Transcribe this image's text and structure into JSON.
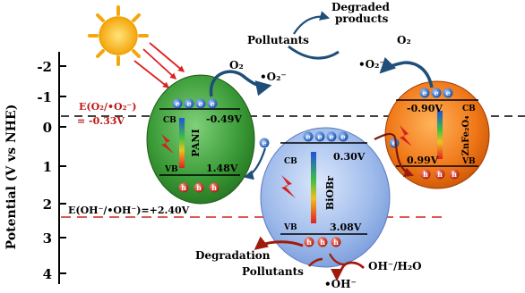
{
  "axis": {
    "title": "Potential (V vs NHE)",
    "ticks": [
      "-2",
      "-1",
      "0",
      "1",
      "2",
      "3",
      "4"
    ]
  },
  "references": {
    "o2_label_line1": "E(O₂/•O₂⁻)",
    "o2_label_line2": "= -0.33V",
    "oh_label": "E(OH⁻/•OH⁻)=+2.40V"
  },
  "pani": {
    "name": "PANI",
    "cb_label": "CB",
    "cb_value": "-0.49V",
    "vb_label": "VB",
    "vb_value": "1.48V",
    "electron": "e",
    "hole": "h"
  },
  "biobr": {
    "name": "BiOBr",
    "cb_label": "CB",
    "cb_value": "0.30V",
    "vb_label": "VB",
    "vb_value": "3.08V"
  },
  "znfe": {
    "name": "ZnFe₂O₄",
    "cb_label": "CB",
    "cb_value": "-0.90V",
    "vb_label": "VB",
    "vb_value": "0.99V"
  },
  "species": {
    "o2_left": "O₂",
    "superoxide_left": "•O₂⁻",
    "pollutants_top": "Pollutants",
    "degraded_line1": "Degraded",
    "degraded_line2": "products",
    "superoxide_right": "•O₂⁻",
    "o2_right": "O₂",
    "degradation": "Degradation",
    "pollutants_bottom": "Pollutants",
    "hydroxyl": "•OH⁻",
    "oh_h2o": "OH⁻/H₂O"
  },
  "colors": {
    "pani": "#2e8b2e",
    "biobr": "#8fb0e6",
    "znfe": "#e86a10",
    "arrow": "#1f4e79",
    "red_arrow": "#8b1a0a",
    "ref_red": "#d42020"
  }
}
